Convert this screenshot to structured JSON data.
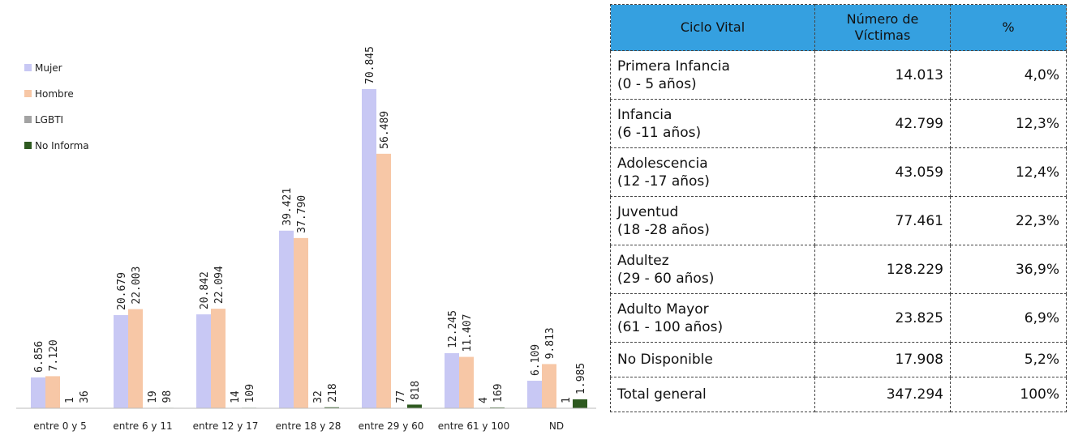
{
  "chart_data": {
    "type": "bar",
    "categories": [
      "entre 0 y 5",
      "entre 6 y 11",
      "entre 12 y 17",
      "entre 18 y 28",
      "entre 29 y 60",
      "entre 61 y 100",
      "ND"
    ],
    "series": [
      {
        "name": "Mujer",
        "color": "#c8c8f4",
        "values": [
          6856,
          20679,
          20842,
          39421,
          70845,
          12245,
          6109
        ],
        "value_labels": [
          "6.856",
          "20.679",
          "20.842",
          "39.421",
          "70.845",
          "12.245",
          "6.109"
        ]
      },
      {
        "name": "Hombre",
        "color": "#f7c7a6",
        "values": [
          7120,
          22003,
          22094,
          37790,
          56489,
          11407,
          9813
        ],
        "value_labels": [
          "7.120",
          "22.003",
          "22.094",
          "37.790",
          "56.489",
          "11.407",
          "9.813"
        ]
      },
      {
        "name": "LGBTI",
        "color": "#a3a3a3",
        "values": [
          1,
          19,
          14,
          32,
          77,
          4,
          1
        ],
        "value_labels": [
          "1",
          "19",
          "14",
          "32",
          "77",
          "4",
          "1"
        ]
      },
      {
        "name": "No Informa",
        "color": "#2e5a20",
        "values": [
          36,
          98,
          109,
          218,
          818,
          169,
          1985
        ],
        "value_labels": [
          "36",
          "98",
          "109",
          "218",
          "818",
          "169",
          "1.985"
        ]
      }
    ]
  },
  "table": {
    "header": [
      "Ciclo Vital",
      "Número de Víctimas",
      "%"
    ],
    "rows": [
      {
        "name": "Primera Infancia",
        "range": "(0 - 5 años)",
        "count": "14.013",
        "pct": "4,0%"
      },
      {
        "name": "Infancia",
        "range": "(6 -11 años)",
        "count": "42.799",
        "pct": "12,3%"
      },
      {
        "name": "Adolescencia",
        "range": "(12 -17 años)",
        "count": "43.059",
        "pct": "12,4%"
      },
      {
        "name": "Juventud",
        "range": "(18 -28 años)",
        "count": "77.461",
        "pct": "22,3%"
      },
      {
        "name": "Adultez",
        "range": "(29 - 60 años)",
        "count": "128.229",
        "pct": "36,9%"
      },
      {
        "name": "Adulto Mayor",
        "range": "(61 - 100 años)",
        "count": "23.825",
        "pct": "6,9%"
      },
      {
        "name": "No Disponible",
        "count": "17.908",
        "pct": "5,2%"
      },
      {
        "name": "Total general",
        "count": "347.294",
        "pct": "100%"
      }
    ]
  }
}
